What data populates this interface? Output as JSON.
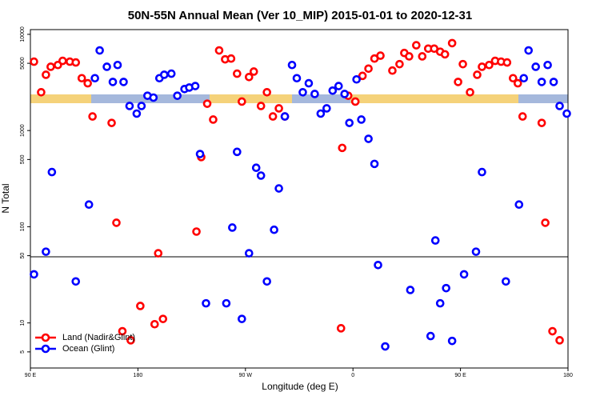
{
  "chart_data": {
    "type": "scatter",
    "title": "50N-55N Annual Mean (Ver 10_MIP)   2015-01-01 to 2020-12-31",
    "x_label": "Longitude (deg E)",
    "y_label": "N Total",
    "y_log": true,
    "legend": "lower left",
    "xlim": [
      90,
      540
    ],
    "xticks": [
      {
        "value": 90,
        "label": "90 E"
      },
      180,
      {
        "value": 270,
        "label": "90 W"
      },
      {
        "value": 360,
        "label": "0"
      },
      {
        "value": 450,
        "label": "90 E"
      },
      {
        "value": 540,
        "label": "180"
      }
    ],
    "ylim": [
      3.4,
      11200
    ],
    "yticks": [
      5,
      10,
      50,
      100,
      500,
      1000,
      5000,
      10000
    ],
    "series": [
      {
        "name": "Land (Nadir&Glint)",
        "color": "#ff0000",
        "x": [
          93,
          99,
          103,
          107,
          113,
          117,
          123,
          128,
          133,
          138,
          142,
          158,
          162,
          167,
          174,
          182,
          194,
          197,
          201,
          229,
          233,
          238,
          243,
          248,
          253,
          258,
          263,
          267,
          273,
          277,
          283,
          288,
          293,
          298,
          303,
          350,
          351,
          356,
          362,
          368,
          373,
          378,
          383,
          393,
          399,
          403,
          407,
          413,
          418,
          423,
          428,
          433,
          437,
          443,
          448,
          452,
          458,
          464,
          468,
          474,
          479,
          484,
          489,
          494,
          498,
          502,
          518,
          521,
          527,
          533
        ],
        "values": [
          5200,
          2500,
          3800,
          4600,
          4800,
          5300,
          5200,
          5100,
          3500,
          3100,
          1400,
          1200,
          110,
          8.2,
          6.6,
          15,
          9.7,
          53,
          11,
          89,
          530,
          1900,
          1300,
          6800,
          5500,
          5600,
          3900,
          2000,
          3600,
          4100,
          1800,
          2500,
          1400,
          1700,
          1400,
          8.8,
          660,
          2300,
          2000,
          3700,
          4400,
          5600,
          6000,
          4200,
          4900,
          6400,
          5900,
          7700,
          5900,
          7100,
          7100,
          6600,
          6200,
          8100,
          3200,
          4900,
          2500,
          3800,
          4600,
          4800,
          5300,
          5200,
          5100,
          3500,
          3100,
          1400,
          1200,
          110,
          8.2,
          6.6
        ]
      },
      {
        "name": "Ocean (Glint)",
        "color": "#0000ff",
        "x": [
          93,
          103,
          108,
          128,
          139,
          144,
          148,
          154,
          159,
          163,
          168,
          173,
          179,
          183,
          188,
          193,
          198,
          202,
          208,
          213,
          219,
          223,
          228,
          232,
          237,
          254,
          259,
          263,
          267,
          273,
          279,
          283,
          288,
          294,
          298,
          303,
          309,
          313,
          318,
          323,
          328,
          333,
          338,
          343,
          348,
          353,
          357,
          363,
          367,
          373,
          378,
          381,
          387,
          408,
          425,
          429,
          433,
          438,
          443,
          453,
          463,
          468,
          488,
          499,
          503,
          507,
          513,
          518,
          523,
          528,
          533,
          539
        ],
        "values": [
          32,
          55,
          370,
          27,
          170,
          3500,
          6800,
          4600,
          3200,
          4800,
          3200,
          1800,
          1500,
          1800,
          2300,
          2200,
          3500,
          3800,
          3900,
          2300,
          2700,
          2800,
          2900,
          570,
          16,
          16,
          98,
          600,
          11,
          53,
          410,
          340,
          27,
          93,
          250,
          1400,
          4800,
          3500,
          2500,
          3100,
          2400,
          1500,
          1700,
          2600,
          2900,
          2400,
          1200,
          3400,
          1300,
          820,
          450,
          40,
          5.7,
          22,
          7.3,
          72,
          16,
          23,
          6.5,
          32,
          55,
          370,
          27,
          170,
          3500,
          6800,
          4600,
          3200,
          4800,
          3200,
          1800,
          1500
        ]
      }
    ]
  }
}
